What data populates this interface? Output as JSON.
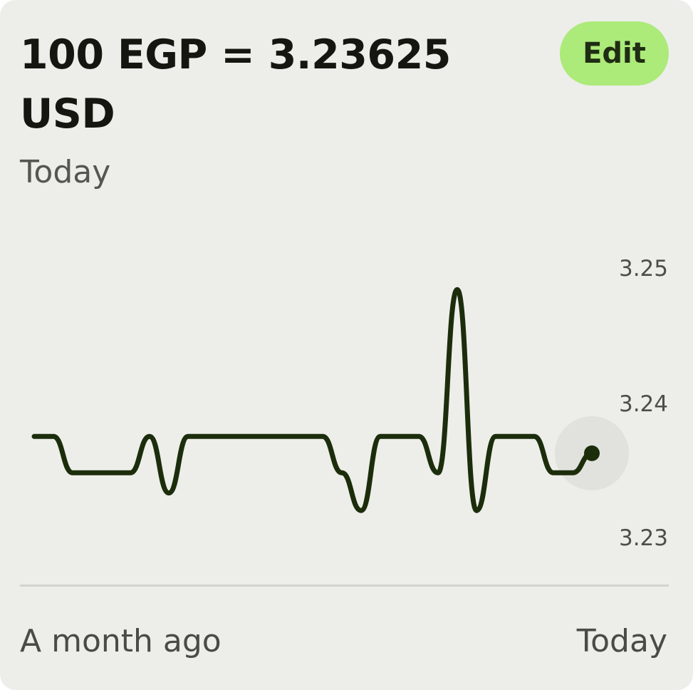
{
  "header": {
    "rate_text": "100 EGP = 3.23625 USD",
    "date_label": "Today",
    "edit_label": "Edit"
  },
  "colors": {
    "card_background": "#edeeea",
    "line": "#1c2d0c",
    "edit_button": "#acea7a",
    "marker_halo": "#e1e2de"
  },
  "chart_data": {
    "type": "line",
    "title": "",
    "xlabel": "",
    "ylabel": "",
    "ylim": [
      3.23,
      3.25
    ],
    "yticks": [
      "3.25",
      "3.24",
      "3.23"
    ],
    "xtick_labels": [
      "A month ago",
      "Today"
    ],
    "grid": false,
    "y_axis_position": "right",
    "values": [
      3.2375,
      3.2375,
      3.2348,
      3.2348,
      3.2348,
      3.2348,
      3.2375,
      3.2333,
      3.2375,
      3.2375,
      3.2375,
      3.2375,
      3.2375,
      3.2375,
      3.2375,
      3.2375,
      3.2348,
      3.232,
      3.2375,
      3.2375,
      3.2375,
      3.2348,
      3.2484,
      3.232,
      3.2375,
      3.2375,
      3.2375,
      3.2348,
      3.2348,
      3.23625
    ],
    "last_value": 3.23625
  }
}
